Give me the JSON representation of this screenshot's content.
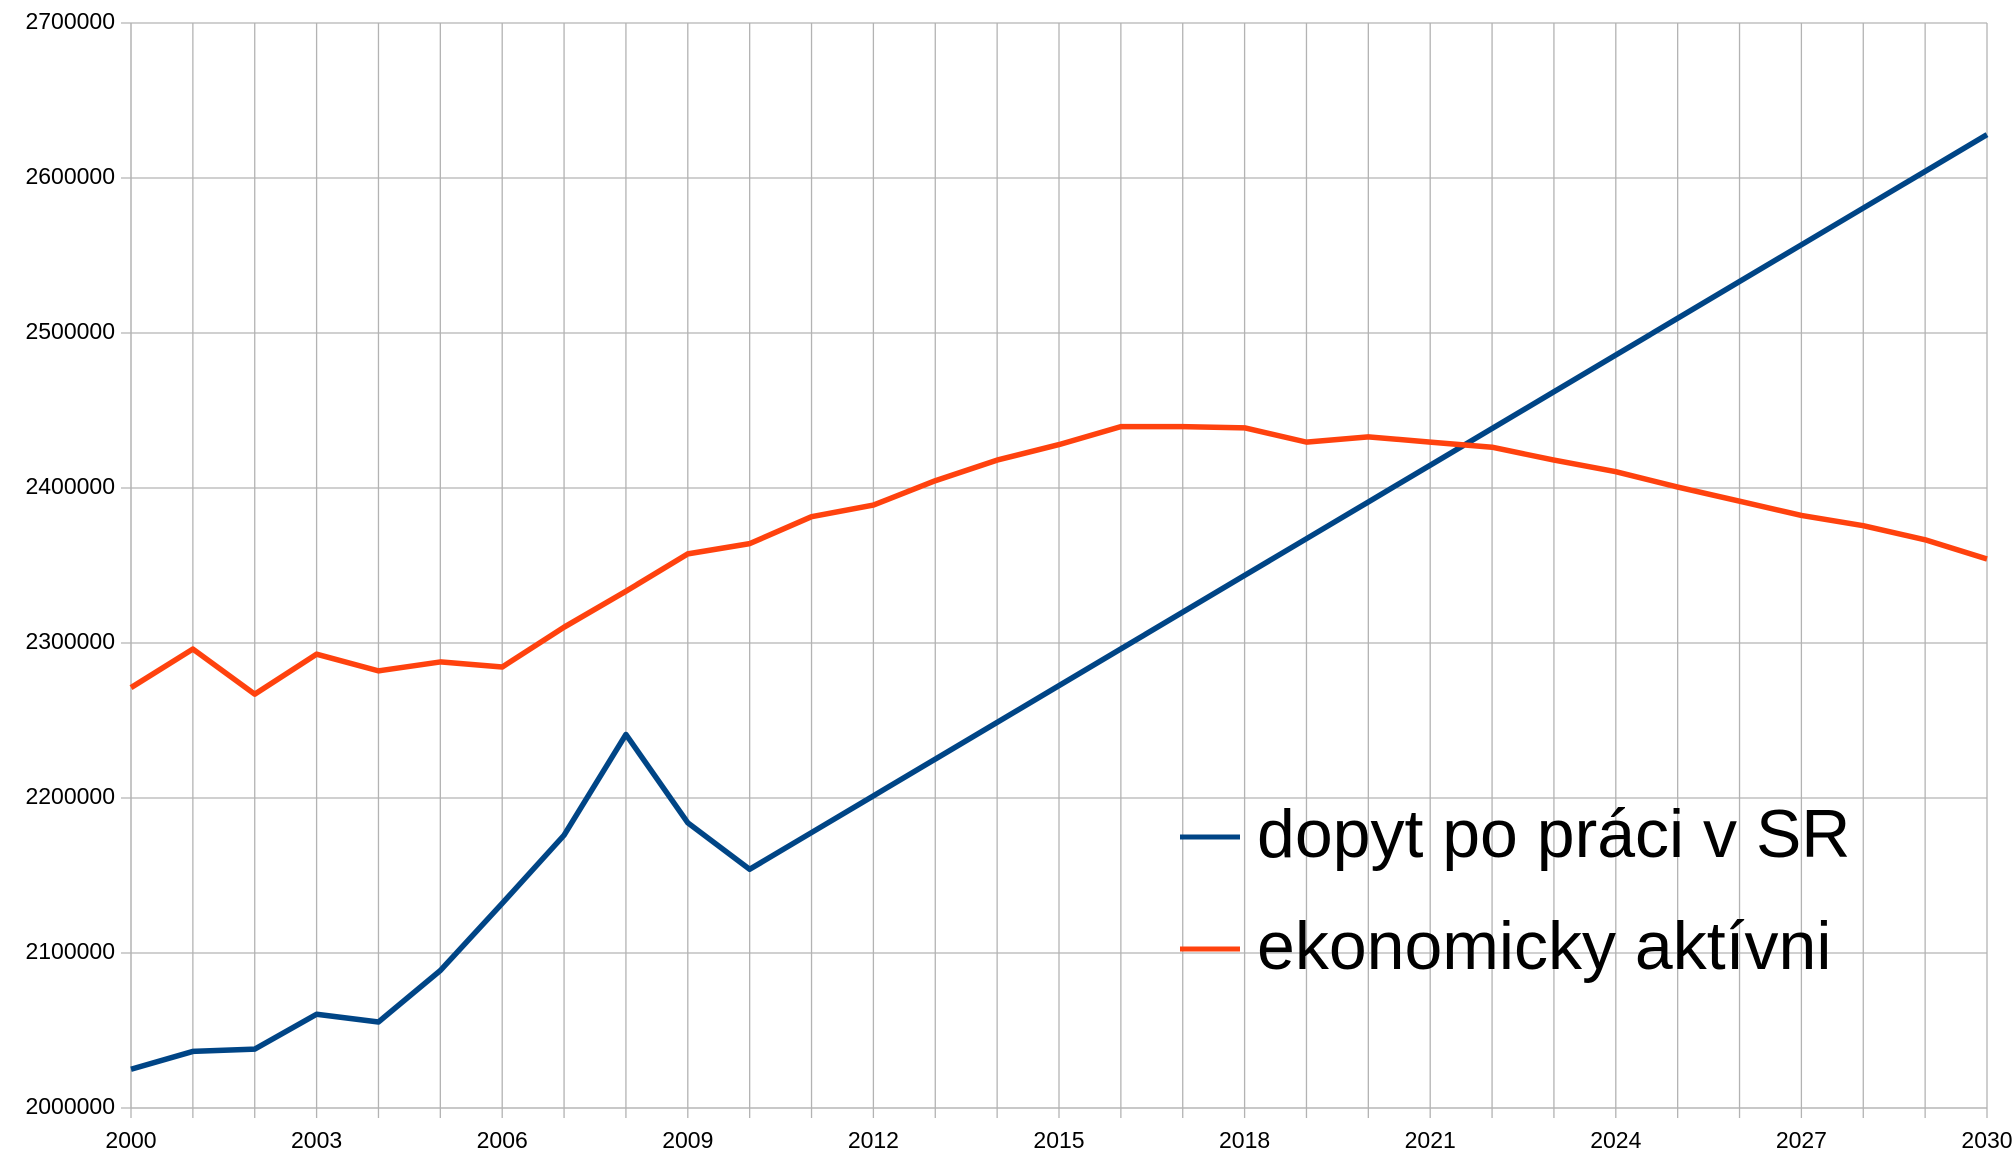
{
  "chart_data": {
    "type": "line",
    "x": [
      2000,
      2001,
      2002,
      2003,
      2004,
      2005,
      2006,
      2007,
      2008,
      2009,
      2010,
      2011,
      2012,
      2013,
      2014,
      2015,
      2016,
      2017,
      2018,
      2019,
      2020,
      2021,
      2022,
      2023,
      2024,
      2025,
      2026,
      2027,
      2028,
      2029,
      2030
    ],
    "series": [
      {
        "name": "dopyt po práci v SR",
        "color": "#004586",
        "values": [
          2025000,
          2036500,
          2038000,
          2060500,
          2055500,
          2088700,
          2132000,
          2176000,
          2241000,
          2184000,
          2154000,
          2177700,
          2201400,
          2225100,
          2248800,
          2272500,
          2296200,
          2319900,
          2343600,
          2367300,
          2391000,
          2414700,
          2438400,
          2462100,
          2485800,
          2509500,
          2533200,
          2556900,
          2580600,
          2604300,
          2628000
        ]
      },
      {
        "name": "ekonomicky aktívni",
        "color": "#ff420e",
        "values": [
          2271200,
          2296100,
          2267000,
          2292800,
          2282000,
          2287800,
          2284500,
          2310200,
          2333400,
          2357500,
          2364100,
          2381500,
          2389000,
          2404700,
          2418000,
          2428000,
          2439600,
          2439600,
          2438800,
          2429600,
          2433000,
          2429600,
          2426300,
          2418000,
          2410500,
          2400600,
          2391500,
          2382300,
          2375700,
          2366600,
          2354200
        ]
      }
    ],
    "xlim": [
      2000,
      2030
    ],
    "xticks": [
      2000,
      2003,
      2006,
      2009,
      2012,
      2015,
      2018,
      2021,
      2024,
      2027,
      2030
    ],
    "ylim": [
      2000000,
      2700000
    ],
    "yticks": [
      2000000,
      2100000,
      2200000,
      2300000,
      2400000,
      2500000,
      2600000,
      2700000
    ],
    "grid": true,
    "legend": "lower right"
  }
}
